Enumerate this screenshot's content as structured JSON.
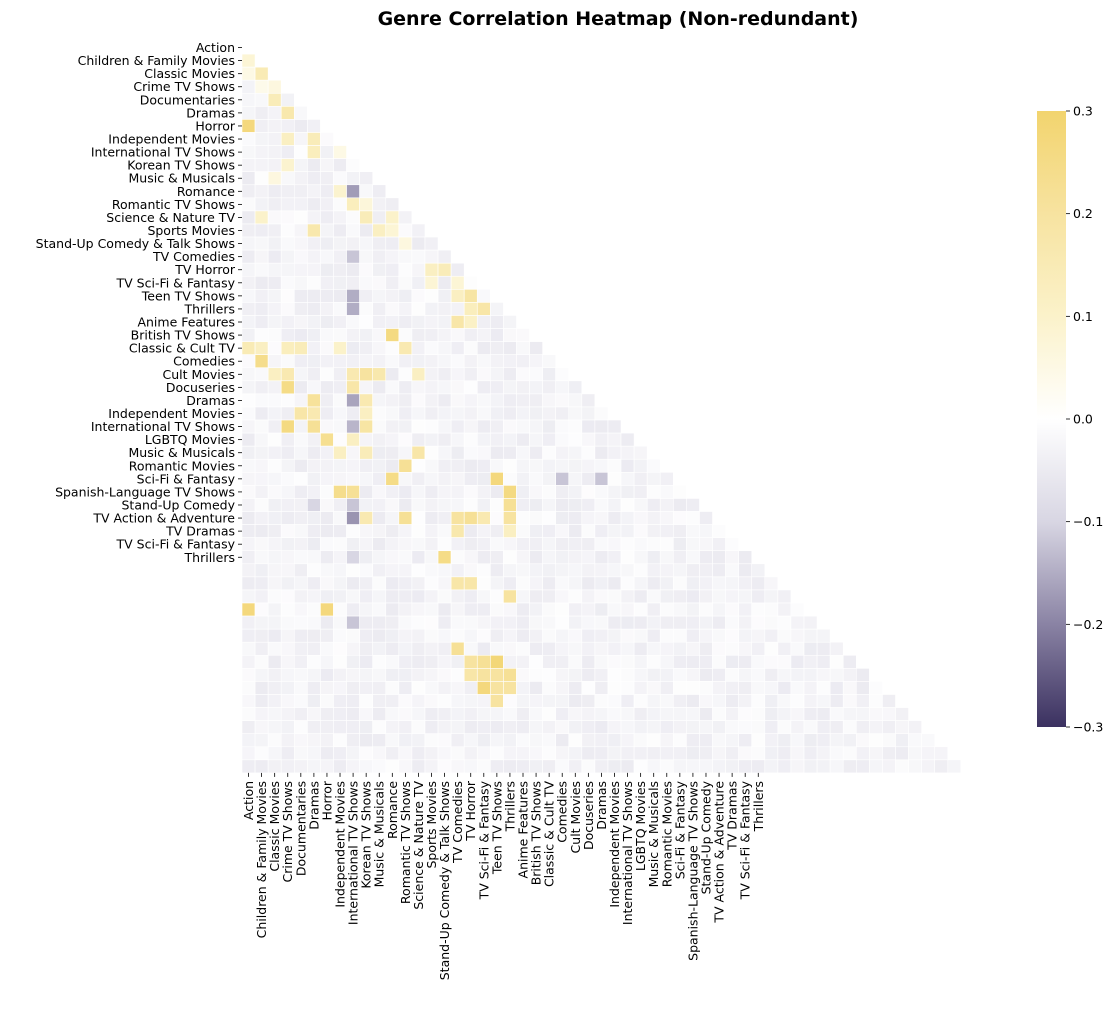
{
  "chart_data": {
    "type": "heatmap",
    "title": "Genre Correlation Heatmap (Non-redundant)",
    "mask": "upper-triangle",
    "labels": [
      "Action",
      "Children & Family Movies",
      "Classic Movies",
      "Crime TV Shows",
      "Documentaries",
      "Dramas",
      "Horror",
      "Independent Movies",
      "International TV Shows",
      "Korean TV Shows",
      "Music & Musicals",
      "Romance",
      "Romantic TV Shows",
      "Science & Nature TV",
      "Sports Movies",
      "Stand-Up Comedy & Talk Shows",
      "TV Comedies",
      "TV Horror",
      "TV Sci-Fi & Fantasy",
      "Teen TV Shows",
      "Thrillers",
      "Anime Features",
      "British TV Shows",
      "Classic & Cult TV",
      "Comedies",
      "Cult Movies",
      "Docuseries",
      "Dramas",
      "Independent Movies",
      "International TV Shows",
      "LGBTQ Movies",
      "Music & Musicals",
      "Romantic Movies",
      "Sci-Fi & Fantasy",
      "Spanish-Language TV Shows",
      "Stand-Up Comedy",
      "TV Action & Adventure",
      "TV Dramas",
      "TV Sci-Fi & Fantasy",
      "Thrillers"
    ],
    "colorbar": {
      "min": -0.3,
      "max": 0.3,
      "ticks": [
        "0.3",
        "0.2",
        "0.1",
        "0.0",
        "−0.1",
        "−0.2",
        "−0.3"
      ],
      "colors": [
        "#3b3160",
        "#8a83a4",
        "#d8d6e3",
        "#ffffff",
        "#fbf2ca",
        "#f7e3a0",
        "#f2d46e"
      ]
    },
    "highlights": [
      {
        "row": 1,
        "col": 0,
        "value": 0.08
      },
      {
        "row": 2,
        "col": 0,
        "value": 0.05
      },
      {
        "row": 2,
        "col": 1,
        "value": 0.15
      },
      {
        "row": 3,
        "col": 1,
        "value": 0.04
      },
      {
        "row": 3,
        "col": 2,
        "value": 0.06
      },
      {
        "row": 4,
        "col": 2,
        "value": 0.14
      },
      {
        "row": 5,
        "col": 3,
        "value": 0.17
      },
      {
        "row": 5,
        "col": 5,
        "value": 0.12
      },
      {
        "row": 6,
        "col": 0,
        "value": 0.27
      },
      {
        "row": 7,
        "col": 3,
        "value": 0.12
      },
      {
        "row": 7,
        "col": 5,
        "value": 0.14
      },
      {
        "row": 8,
        "col": 5,
        "value": 0.13
      },
      {
        "row": 8,
        "col": 7,
        "value": 0.05
      },
      {
        "row": 9,
        "col": 3,
        "value": 0.09
      },
      {
        "row": 10,
        "col": 2,
        "value": 0.06
      },
      {
        "row": 11,
        "col": 7,
        "value": 0.09
      },
      {
        "row": 12,
        "col": 8,
        "value": 0.13
      },
      {
        "row": 12,
        "col": 9,
        "value": 0.07
      },
      {
        "row": 13,
        "col": 1,
        "value": 0.1
      },
      {
        "row": 13,
        "col": 9,
        "value": 0.14
      },
      {
        "row": 13,
        "col": 11,
        "value": 0.1
      },
      {
        "row": 14,
        "col": 5,
        "value": 0.17
      },
      {
        "row": 14,
        "col": 10,
        "value": 0.12
      },
      {
        "row": 14,
        "col": 11,
        "value": 0.08
      },
      {
        "row": 15,
        "col": 12,
        "value": 0.06
      },
      {
        "row": 17,
        "col": 14,
        "value": 0.12
      },
      {
        "row": 17,
        "col": 15,
        "value": 0.14
      },
      {
        "row": 18,
        "col": 14,
        "value": 0.08
      },
      {
        "row": 18,
        "col": 16,
        "value": 0.08
      },
      {
        "row": 19,
        "col": 16,
        "value": 0.12
      },
      {
        "row": 19,
        "col": 17,
        "value": 0.19
      },
      {
        "row": 20,
        "col": 17,
        "value": 0.13
      },
      {
        "row": 20,
        "col": 18,
        "value": 0.18
      },
      {
        "row": 21,
        "col": 16,
        "value": 0.18
      },
      {
        "row": 21,
        "col": 17,
        "value": 0.11
      },
      {
        "row": 22,
        "col": 11,
        "value": 0.26
      },
      {
        "row": 23,
        "col": 0,
        "value": 0.15
      },
      {
        "row": 23,
        "col": 1,
        "value": 0.12
      },
      {
        "row": 23,
        "col": 3,
        "value": 0.13
      },
      {
        "row": 23,
        "col": 4,
        "value": 0.14
      },
      {
        "row": 23,
        "col": 7,
        "value": 0.1
      },
      {
        "row": 23,
        "col": 12,
        "value": 0.16
      },
      {
        "row": 24,
        "col": 1,
        "value": 0.24
      },
      {
        "row": 25,
        "col": 2,
        "value": 0.12
      },
      {
        "row": 25,
        "col": 3,
        "value": 0.16
      },
      {
        "row": 25,
        "col": 8,
        "value": 0.16
      },
      {
        "row": 25,
        "col": 9,
        "value": 0.2
      },
      {
        "row": 25,
        "col": 10,
        "value": 0.17
      },
      {
        "row": 25,
        "col": 13,
        "value": 0.12
      },
      {
        "row": 26,
        "col": 3,
        "value": 0.25
      },
      {
        "row": 26,
        "col": 8,
        "value": 0.18
      },
      {
        "row": 27,
        "col": 5,
        "value": 0.21
      },
      {
        "row": 27,
        "col": 9,
        "value": 0.16
      },
      {
        "row": 28,
        "col": 4,
        "value": 0.18
      },
      {
        "row": 28,
        "col": 5,
        "value": 0.16
      },
      {
        "row": 28,
        "col": 9,
        "value": 0.12
      },
      {
        "row": 29,
        "col": 3,
        "value": 0.26
      },
      {
        "row": 29,
        "col": 5,
        "value": 0.22
      },
      {
        "row": 29,
        "col": 9,
        "value": 0.19
      },
      {
        "row": 30,
        "col": 6,
        "value": 0.23
      },
      {
        "row": 30,
        "col": 8,
        "value": 0.12
      },
      {
        "row": 31,
        "col": 7,
        "value": 0.12
      },
      {
        "row": 31,
        "col": 9,
        "value": 0.14
      },
      {
        "row": 31,
        "col": 13,
        "value": 0.18
      },
      {
        "row": 32,
        "col": 12,
        "value": 0.22
      },
      {
        "row": 33,
        "col": 11,
        "value": 0.25
      },
      {
        "row": 33,
        "col": 19,
        "value": 0.27
      },
      {
        "row": 34,
        "col": 7,
        "value": 0.24
      },
      {
        "row": 34,
        "col": 8,
        "value": 0.22
      },
      {
        "row": 34,
        "col": 20,
        "value": 0.26
      },
      {
        "row": 35,
        "col": 20,
        "value": 0.22
      },
      {
        "row": 36,
        "col": 9,
        "value": 0.16
      },
      {
        "row": 36,
        "col": 12,
        "value": 0.22
      },
      {
        "row": 36,
        "col": 16,
        "value": 0.2
      },
      {
        "row": 36,
        "col": 17,
        "value": 0.22
      },
      {
        "row": 36,
        "col": 18,
        "value": 0.16
      },
      {
        "row": 36,
        "col": 20,
        "value": 0.2
      },
      {
        "row": 37,
        "col": 16,
        "value": 0.17
      },
      {
        "row": 37,
        "col": 20,
        "value": 0.12
      },
      {
        "row": 39,
        "col": 15,
        "value": 0.25
      },
      {
        "row": 41,
        "col": 16,
        "value": 0.18
      },
      {
        "row": 41,
        "col": 17,
        "value": 0.18
      },
      {
        "row": 42,
        "col": 20,
        "value": 0.2
      },
      {
        "row": 43,
        "col": 0,
        "value": 0.27
      },
      {
        "row": 43,
        "col": 6,
        "value": 0.27
      },
      {
        "row": 46,
        "col": 16,
        "value": 0.22
      },
      {
        "row": 47,
        "col": 17,
        "value": 0.2
      },
      {
        "row": 47,
        "col": 18,
        "value": 0.22
      },
      {
        "row": 47,
        "col": 19,
        "value": 0.28
      },
      {
        "row": 48,
        "col": 17,
        "value": 0.18
      },
      {
        "row": 48,
        "col": 18,
        "value": 0.2
      },
      {
        "row": 48,
        "col": 19,
        "value": 0.2
      },
      {
        "row": 48,
        "col": 20,
        "value": 0.22
      },
      {
        "row": 49,
        "col": 18,
        "value": 0.27
      },
      {
        "row": 49,
        "col": 19,
        "value": 0.2
      },
      {
        "row": 49,
        "col": 20,
        "value": 0.2
      },
      {
        "row": 50,
        "col": 19,
        "value": 0.2
      },
      {
        "row": 11,
        "col": 8,
        "value": -0.17
      },
      {
        "row": 16,
        "col": 8,
        "value": -0.12
      },
      {
        "row": 19,
        "col": 8,
        "value": -0.15
      },
      {
        "row": 20,
        "col": 8,
        "value": -0.15
      },
      {
        "row": 27,
        "col": 8,
        "value": -0.16
      },
      {
        "row": 29,
        "col": 8,
        "value": -0.14
      },
      {
        "row": 35,
        "col": 5,
        "value": -0.1
      },
      {
        "row": 35,
        "col": 8,
        "value": -0.12
      },
      {
        "row": 36,
        "col": 8,
        "value": -0.18
      },
      {
        "row": 33,
        "col": 24,
        "value": -0.12
      },
      {
        "row": 33,
        "col": 27,
        "value": -0.12
      },
      {
        "row": 44,
        "col": 8,
        "value": -0.12
      },
      {
        "row": 39,
        "col": 8,
        "value": -0.1
      }
    ]
  }
}
